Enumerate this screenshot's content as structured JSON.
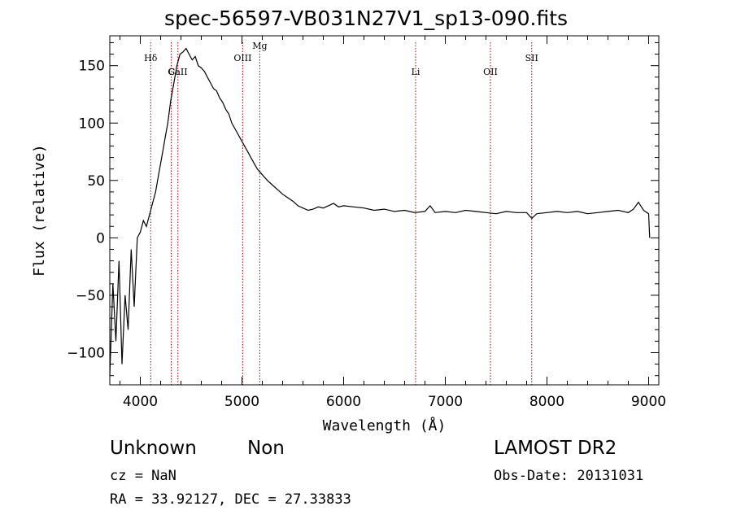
{
  "title": "spec-56597-VB031N27V1_sp13-090.fits",
  "footer": {
    "class_label": "Unknown",
    "subclass_label": "Non",
    "survey": "LAMOST DR2",
    "cz_text": "cz = NaN",
    "obs_date_text": "Obs-Date: 20131031",
    "radec_text": "RA =  33.92127, DEC =  27.33833"
  },
  "chart_data": {
    "type": "line",
    "title": "spec-56597-VB031N27V1_sp13-090.fits",
    "xlabel": "Wavelength (Å)",
    "ylabel": "Flux (relative)",
    "xlim": [
      3700,
      9100
    ],
    "ylim": [
      -128,
      176
    ],
    "xticks": [
      4000,
      5000,
      6000,
      7000,
      8000,
      9000
    ],
    "yticks": [
      -100,
      -50,
      0,
      50,
      100,
      150
    ],
    "grid": false,
    "line_color": "#000000",
    "marker_color": "#990000",
    "lines": [
      {
        "label": "Hδ",
        "x": 4102
      },
      {
        "label": "G",
        "x": 4305
      },
      {
        "label": "CaII",
        "x": 4370
      },
      {
        "label": "OIII",
        "x": 5007
      },
      {
        "label": "Mg",
        "x": 5175
      },
      {
        "label": "Li",
        "x": 6708
      },
      {
        "label": "OII",
        "x": 7444
      },
      {
        "label": "SII",
        "x": 7850
      }
    ],
    "series": [
      {
        "x": [
          3700,
          3730,
          3760,
          3790,
          3820,
          3850,
          3880,
          3910,
          3940,
          3970,
          4000,
          4030,
          4060,
          4090,
          4120,
          4150,
          4180,
          4210,
          4240,
          4270,
          4300,
          4330,
          4360,
          4390,
          4420,
          4450,
          4480,
          4510,
          4540,
          4570,
          4600,
          4630,
          4660,
          4690,
          4720,
          4750,
          4780,
          4810,
          4840,
          4870,
          4900,
          4950,
          5000,
          5050,
          5100,
          5150,
          5200,
          5250,
          5300,
          5350,
          5400,
          5450,
          5500,
          5550,
          5600,
          5650,
          5700,
          5750,
          5800,
          5850,
          5900,
          5950,
          6000,
          6100,
          6200,
          6300,
          6400,
          6500,
          6600,
          6700,
          6800,
          6850,
          6900,
          7000,
          7100,
          7200,
          7300,
          7400,
          7500,
          7600,
          7700,
          7800,
          7850,
          7900,
          8000,
          8100,
          8200,
          8300,
          8400,
          8500,
          8600,
          8700,
          8800,
          8850,
          8900,
          8950,
          9000,
          9010
        ],
        "values": [
          -120,
          -40,
          -90,
          -20,
          -110,
          -50,
          -80,
          -10,
          -60,
          0,
          5,
          15,
          10,
          20,
          30,
          40,
          55,
          70,
          85,
          100,
          120,
          135,
          150,
          160,
          162,
          165,
          160,
          155,
          158,
          150,
          148,
          145,
          140,
          135,
          130,
          128,
          122,
          118,
          112,
          108,
          100,
          92,
          84,
          76,
          68,
          60,
          55,
          50,
          46,
          42,
          38,
          35,
          32,
          28,
          26,
          24,
          25,
          27,
          26,
          28,
          30,
          27,
          28,
          27,
          26,
          24,
          25,
          23,
          24,
          22,
          23,
          28,
          22,
          23,
          22,
          24,
          23,
          22,
          21,
          23,
          22,
          22,
          17,
          21,
          22,
          23,
          22,
          23,
          21,
          22,
          23,
          24,
          22,
          25,
          31,
          24,
          21,
          0
        ]
      }
    ]
  }
}
